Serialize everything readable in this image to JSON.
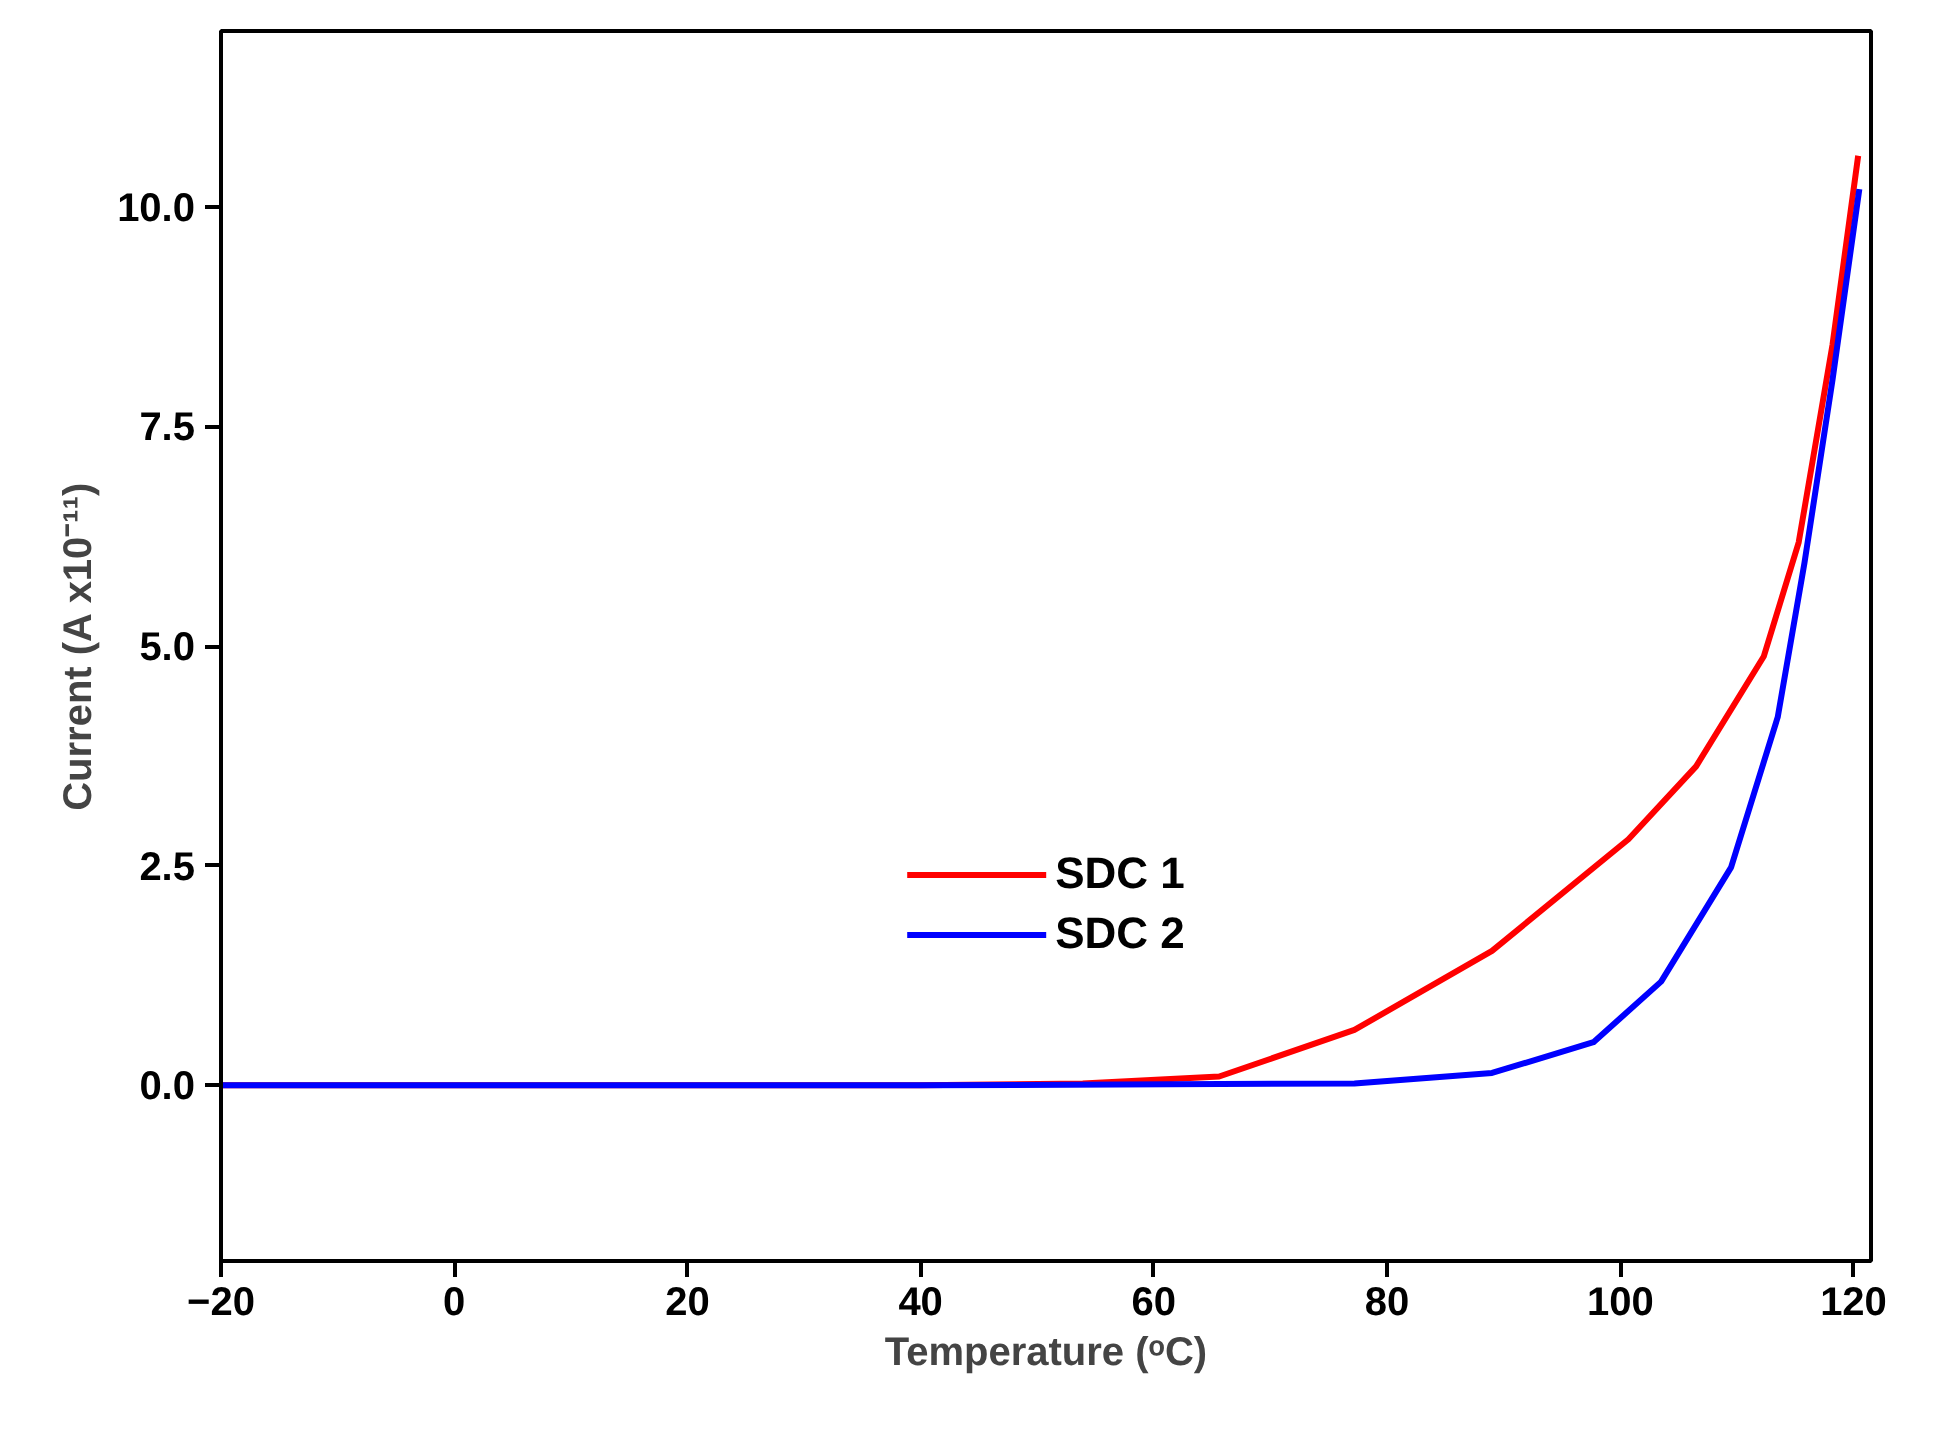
{
  "chart_data": {
    "type": "line",
    "xlabel": "Temperature (ᵒC)",
    "ylabel": "Current (A x10⁻¹¹)",
    "xlim": [
      -20,
      121.5
    ],
    "ylim": [
      -2,
      12
    ],
    "xticks": [
      -20,
      0,
      20,
      40,
      60,
      80,
      100,
      120
    ],
    "yticks": [
      {
        "value": 0,
        "label": "0.0"
      },
      2.5,
      {
        "value": 5,
        "label": "5.0"
      },
      7.5,
      {
        "value": 10,
        "label": "10.0"
      }
    ],
    "grid": false,
    "legend": "bottom",
    "marker": "none",
    "line_style": "solid",
    "series": [
      {
        "name": "SDC 1",
        "color": "#ff0000",
        "x": [
          -20,
          40,
          53.9,
          65.6,
          77.2,
          89,
          100.7,
          106.5,
          112.3,
          115.3,
          118.2,
          120.4
        ],
        "values": [
          0,
          0,
          0.02,
          0.1,
          0.63,
          1.53,
          2.8,
          3.63,
          4.88,
          6.18,
          8.43,
          10.58
        ]
      },
      {
        "name": "SDC 2",
        "color": "#0000ff",
        "x": [
          -20,
          40,
          77.2,
          89,
          97.7,
          103.5,
          109.5,
          113.5,
          115.8,
          118.2,
          120.5
        ],
        "values": [
          0,
          0,
          0.02,
          0.14,
          0.49,
          1.18,
          2.48,
          4.19,
          5.95,
          8.03,
          10.2
        ]
      }
    ]
  }
}
